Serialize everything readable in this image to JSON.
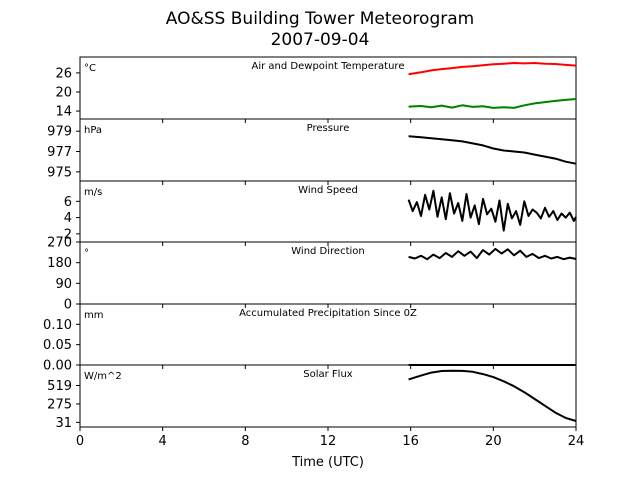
{
  "figure": {
    "title_line1": "AO&SS Building Tower Meteorogram",
    "title_line2": "2007-09-04",
    "xlabel": "Time (UTC)"
  },
  "x_axis": {
    "range": [
      0,
      24
    ],
    "ticks": [
      0,
      4,
      8,
      12,
      16,
      20,
      24
    ],
    "tick_labels": [
      "0",
      "4",
      "8",
      "12",
      "16",
      "20",
      "24"
    ]
  },
  "chart_data": [
    {
      "type": "line",
      "title": "Air and Dewpoint Temperature",
      "unit": "°C",
      "ylim": [
        11.5,
        31
      ],
      "yticks": [
        14,
        20,
        26
      ],
      "ytick_labels": [
        "14",
        "20",
        "26"
      ],
      "x": [
        15.9,
        16.5,
        17.0,
        17.5,
        18.0,
        18.5,
        19.0,
        19.5,
        20.0,
        20.5,
        21.0,
        21.5,
        22.0,
        22.5,
        23.0,
        23.5,
        24.0
      ],
      "series": [
        {
          "key": "air",
          "color": "#ff0000",
          "values": [
            25.6,
            26.2,
            26.8,
            27.2,
            27.5,
            27.9,
            28.1,
            28.4,
            28.7,
            28.9,
            29.1,
            29.0,
            29.1,
            28.9,
            28.8,
            28.5,
            28.3
          ]
        },
        {
          "key": "dew",
          "color": "#008000",
          "values": [
            15.4,
            15.6,
            15.2,
            15.7,
            15.1,
            15.8,
            15.3,
            15.5,
            15.0,
            15.2,
            15.0,
            15.8,
            16.4,
            16.8,
            17.2,
            17.5,
            17.8
          ]
        }
      ]
    },
    {
      "type": "line",
      "title": "Pressure",
      "unit": "hPa",
      "ylim": [
        974.1,
        980.2
      ],
      "yticks": [
        975,
        977,
        979
      ],
      "ytick_labels": [
        "975",
        "977",
        "979"
      ],
      "x": [
        15.9,
        16.5,
        17.0,
        17.5,
        18.0,
        18.5,
        19.0,
        19.5,
        20.0,
        20.5,
        21.0,
        21.5,
        22.0,
        22.5,
        23.0,
        23.5,
        24.0
      ],
      "series": [
        {
          "key": "pressure",
          "color": "#000000",
          "values": [
            978.5,
            978.4,
            978.3,
            978.2,
            978.1,
            978.0,
            977.8,
            977.6,
            977.3,
            977.1,
            977.0,
            976.9,
            976.7,
            976.5,
            976.3,
            976.0,
            975.8
          ]
        }
      ]
    },
    {
      "type": "line",
      "title": "Wind Speed",
      "unit": "m/s",
      "ylim": [
        1,
        8.5
      ],
      "yticks": [
        2,
        4,
        6
      ],
      "ytick_labels": [
        "2",
        "4",
        "6"
      ],
      "x": [
        15.9,
        16.1,
        16.3,
        16.5,
        16.7,
        16.9,
        17.1,
        17.3,
        17.5,
        17.7,
        17.9,
        18.1,
        18.3,
        18.5,
        18.7,
        18.9,
        19.1,
        19.3,
        19.5,
        19.7,
        19.9,
        20.1,
        20.3,
        20.5,
        20.7,
        20.9,
        21.1,
        21.3,
        21.5,
        21.7,
        21.9,
        22.1,
        22.3,
        22.5,
        22.7,
        22.9,
        23.1,
        23.3,
        23.5,
        23.7,
        23.9,
        24.0
      ],
      "series": [
        {
          "key": "wind_speed",
          "color": "#000000",
          "values": [
            6.2,
            4.8,
            5.9,
            4.2,
            6.8,
            5.0,
            7.3,
            4.1,
            6.5,
            3.8,
            7.0,
            4.5,
            5.8,
            3.6,
            6.9,
            4.0,
            5.5,
            3.2,
            6.3,
            4.4,
            5.1,
            3.5,
            6.1,
            2.4,
            5.7,
            3.9,
            4.8,
            3.1,
            6.0,
            4.2,
            5.0,
            4.6,
            3.9,
            5.2,
            4.1,
            4.8,
            3.7,
            4.5,
            4.0,
            4.6,
            3.6,
            4.1
          ]
        }
      ]
    },
    {
      "type": "line",
      "title": "Wind Direction",
      "unit": "°",
      "ylim": [
        0,
        270
      ],
      "yticks": [
        0,
        90,
        180,
        270
      ],
      "ytick_labels": [
        "0",
        "90",
        "180",
        "270"
      ],
      "x": [
        15.9,
        16.2,
        16.5,
        16.8,
        17.1,
        17.4,
        17.7,
        18.0,
        18.3,
        18.6,
        18.9,
        19.2,
        19.5,
        19.8,
        20.1,
        20.4,
        20.7,
        21.0,
        21.3,
        21.6,
        21.9,
        22.2,
        22.5,
        22.8,
        23.1,
        23.4,
        23.7,
        24.0
      ],
      "series": [
        {
          "key": "wind_direction",
          "color": "#000000",
          "values": [
            205,
            198,
            210,
            195,
            215,
            200,
            222,
            205,
            230,
            210,
            228,
            200,
            235,
            215,
            240,
            220,
            238,
            212,
            232,
            205,
            218,
            200,
            210,
            198,
            205,
            195,
            202,
            196
          ]
        }
      ]
    },
    {
      "type": "line",
      "title": "Accumulated Precipitation Since 0Z",
      "unit": "mm",
      "ylim": [
        0,
        0.15
      ],
      "yticks": [
        0.0,
        0.05,
        0.1
      ],
      "ytick_labels": [
        "0.00",
        "0.05",
        "0.10"
      ],
      "x": [
        15.9,
        24.0
      ],
      "series": [
        {
          "key": "precipitation",
          "color": "#000000",
          "values": [
            0.0,
            0.0
          ]
        }
      ]
    },
    {
      "type": "line",
      "title": "Solar Flux",
      "unit": "W/m^2",
      "ylim": [
        -30,
        790
      ],
      "yticks": [
        31,
        275,
        519
      ],
      "ytick_labels": [
        "31",
        "275",
        "519"
      ],
      "x": [
        15.9,
        16.5,
        17.0,
        17.5,
        18.0,
        18.5,
        19.0,
        19.5,
        20.0,
        20.5,
        21.0,
        21.5,
        22.0,
        22.5,
        23.0,
        23.5,
        24.0
      ],
      "series": [
        {
          "key": "solar_flux",
          "color": "#000000",
          "values": [
            600,
            650,
            690,
            710,
            715,
            712,
            700,
            670,
            630,
            575,
            510,
            430,
            340,
            250,
            160,
            90,
            50
          ]
        }
      ]
    }
  ]
}
